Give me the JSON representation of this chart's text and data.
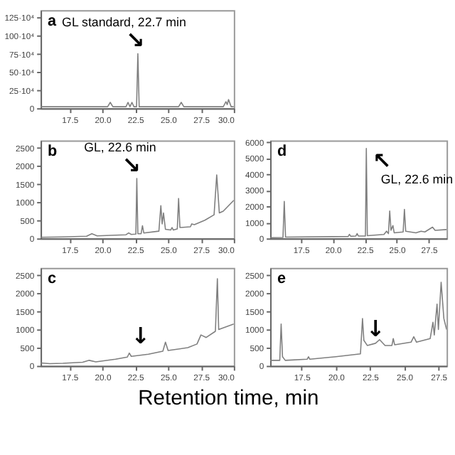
{
  "chart_data": [
    {
      "type": "line",
      "title": "a",
      "annotations": [
        "GL standard, 22.7 min",
        {
          "text": "↘",
          "x": 22.5,
          "y": 780000
        }
      ],
      "xlim": [
        15.3,
        30
      ],
      "ylim": [
        0,
        1350000
      ],
      "xticks": [
        17.5,
        {
          "value": 20,
          "label": "20.0"
        },
        22.5,
        {
          "value": 25,
          "label": "25.0"
        },
        27.5,
        {
          "value": 30,
          "label": "30.0"
        }
      ],
      "yticks": [
        0,
        {
          "value": 250000,
          "label": "25·10⁴"
        },
        {
          "value": 500000,
          "label": "50·10⁴"
        },
        {
          "value": 750000,
          "label": "75·10⁴"
        },
        {
          "value": 1000000,
          "label": "100·10⁴"
        },
        {
          "value": 1250000,
          "label": "125·10⁴"
        }
      ],
      "series": [
        {
          "color": "#7f7f7f",
          "x": [
            15.3,
            20.4,
            20.6,
            20.8,
            21.8,
            21.95,
            22.1,
            22.25,
            22.4,
            22.6,
            22.7,
            22.8,
            25.8,
            26.0,
            26.2,
            29.2,
            29.4,
            29.5,
            29.6,
            29.8,
            30
          ],
          "values": [
            20000,
            20000,
            80000,
            20000,
            20000,
            80000,
            20000,
            80000,
            20000,
            20000,
            750000,
            20000,
            20000,
            80000,
            20000,
            20000,
            90000,
            50000,
            120000,
            20000,
            20000
          ]
        }
      ]
    },
    {
      "type": "line",
      "title": "b",
      "annotations": [
        "GL, 22.6 min",
        {
          "text": "↘",
          "x": 22.2,
          "y": 1700
        }
      ],
      "xlim": [
        15.3,
        30
      ],
      "ylim": [
        0,
        2700
      ],
      "xticks": [
        17.5,
        {
          "value": 20,
          "label": "20.0"
        },
        22.5,
        {
          "value": 25,
          "label": "25.0"
        },
        27.5,
        {
          "value": 30,
          "label": "30.0"
        }
      ],
      "yticks": [
        0,
        500,
        1000,
        1500,
        2000,
        2500
      ],
      "series": [
        {
          "color": "#7f7f7f",
          "x": [
            15.3,
            17,
            18.8,
            19.2,
            19.6,
            21.8,
            22.0,
            22.2,
            22.55,
            22.62,
            22.7,
            22.95,
            23.05,
            23.15,
            24.3,
            24.45,
            24.55,
            24.65,
            24.8,
            25.2,
            25.3,
            25.4,
            25.7,
            25.8,
            25.9,
            26.7,
            26.8,
            27,
            27.8,
            28.5,
            28.7,
            28.9,
            29.2,
            30
          ],
          "values": [
            30,
            40,
            60,
            130,
            70,
            100,
            150,
            110,
            120,
            1650,
            130,
            130,
            350,
            150,
            200,
            900,
            400,
            700,
            250,
            230,
            300,
            230,
            260,
            1100,
            300,
            320,
            400,
            380,
            500,
            650,
            1750,
            700,
            750,
            1050
          ]
        }
      ]
    },
    {
      "type": "line",
      "title": "d",
      "annotations": [
        "GL, 22.6 min",
        {
          "text": "↖",
          "x": 23.1,
          "y": 5500
        }
      ],
      "xlim": [
        15.1,
        28.9
      ],
      "ylim": [
        0,
        6100
      ],
      "xticks": [
        17.5,
        {
          "value": 20,
          "label": "20.0"
        },
        22.5,
        {
          "value": 25,
          "label": "25.0"
        },
        27.5
      ],
      "yticks": [
        0,
        1000,
        2000,
        3000,
        4000,
        5000,
        6000
      ],
      "series": [
        {
          "color": "#7f7f7f",
          "x": [
            15.1,
            16.1,
            16.2,
            16.3,
            21.2,
            21.3,
            21.4,
            21.8,
            21.9,
            22.0,
            22.55,
            22.62,
            22.7,
            24.0,
            24.2,
            24.35,
            24.45,
            24.55,
            24.7,
            24.8,
            25.5,
            25.6,
            25.7,
            26.5,
            26.9,
            27.2,
            27.8,
            28.0,
            28.9
          ],
          "values": [
            50,
            60,
            2300,
            80,
            120,
            250,
            130,
            150,
            300,
            150,
            150,
            5600,
            170,
            250,
            450,
            300,
            1700,
            500,
            800,
            350,
            400,
            1800,
            450,
            350,
            450,
            400,
            700,
            500,
            550
          ]
        }
      ]
    },
    {
      "type": "line",
      "title": "c",
      "xlabel": "Retention time, min",
      "annotations": [
        {
          "text": "↓",
          "x": 22.9,
          "y": 500
        }
      ],
      "xlim": [
        15.3,
        30
      ],
      "ylim": [
        0,
        2700
      ],
      "xticks": [
        17.5,
        {
          "value": 20,
          "label": "20.0"
        },
        22.5,
        {
          "value": 25,
          "label": "25.0"
        },
        27.5,
        {
          "value": 30,
          "label": "30.0"
        }
      ],
      "yticks": [
        0,
        500,
        1000,
        1500,
        2000,
        2500
      ],
      "series": [
        {
          "color": "#7f7f7f",
          "x": [
            15.3,
            16,
            17,
            18.5,
            19,
            19.5,
            21,
            21.9,
            22.05,
            22.2,
            23.5,
            24.6,
            24.8,
            25,
            26.5,
            27.2,
            27.5,
            27.9,
            28.6,
            28.75,
            28.85,
            30
          ],
          "values": [
            80,
            60,
            70,
            100,
            150,
            110,
            180,
            240,
            350,
            260,
            320,
            400,
            650,
            420,
            500,
            600,
            850,
            780,
            950,
            2400,
            1000,
            1150
          ]
        }
      ]
    },
    {
      "type": "line",
      "title": "e",
      "annotations": [
        {
          "text": "↓",
          "x": 22.9,
          "y": 700
        }
      ],
      "xlim": [
        15.2,
        28.1
      ],
      "ylim": [
        0,
        2700
      ],
      "xticks": [
        17.5,
        {
          "value": 20,
          "label": "20.0"
        },
        22.5,
        {
          "value": 25,
          "label": "25.0"
        },
        27.5
      ],
      "yticks": [
        0,
        500,
        1000,
        1500,
        2000,
        2500
      ],
      "series": [
        {
          "color": "#7f7f7f",
          "x": [
            15.2,
            15.9,
            16.0,
            16.1,
            16.3,
            17.9,
            18,
            18.1,
            20,
            21.8,
            21.95,
            22.05,
            22.3,
            22.9,
            23.2,
            23.6,
            24.1,
            24.2,
            24.3,
            25.5,
            25.7,
            25.9,
            26.9,
            27.1,
            27.2,
            27.4,
            27.5,
            27.7,
            27.9,
            28.1
          ],
          "values": [
            150,
            150,
            1150,
            250,
            150,
            180,
            250,
            180,
            250,
            330,
            1300,
            700,
            560,
            620,
            720,
            560,
            560,
            750,
            580,
            650,
            800,
            650,
            750,
            1200,
            850,
            1700,
            1000,
            2300,
            1300,
            1000
          ]
        }
      ]
    }
  ]
}
